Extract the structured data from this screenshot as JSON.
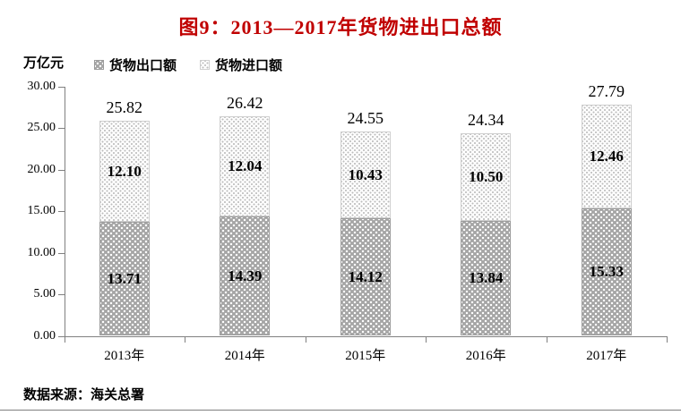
{
  "title": "图9：2013—2017年货物进出口总额",
  "y_axis": {
    "unit_label": "万亿元",
    "tick_labels": [
      "30.00",
      "25.00",
      "20.00",
      "15.00",
      "10.00",
      "5.00",
      "0.00"
    ]
  },
  "legend": {
    "items": [
      {
        "label": "货物出口额",
        "swatch": "export-pattern"
      },
      {
        "label": "货物进口额",
        "swatch": "import-pattern"
      }
    ]
  },
  "chart_data": {
    "type": "bar",
    "stacked": true,
    "title": "图9：2013—2017年货物进出口总额",
    "ylabel": "万亿元",
    "ylim": [
      0,
      30
    ],
    "y_tick_step": 5,
    "grid": false,
    "legend_position": "top",
    "categories": [
      "2013年",
      "2014年",
      "2015年",
      "2016年",
      "2017年"
    ],
    "series": [
      {
        "name": "货物出口额",
        "values": [
          13.71,
          14.39,
          14.12,
          13.84,
          15.33
        ]
      },
      {
        "name": "货物进口额",
        "values": [
          12.1,
          12.04,
          10.43,
          10.5,
          12.46
        ]
      }
    ],
    "totals": [
      25.82,
      26.42,
      24.55,
      24.34,
      27.79
    ]
  },
  "source_note": "数据来源：海关总署",
  "colors": {
    "title_text": "#c00000",
    "axis_line": "#808080",
    "export_fill": "#a6a6a6",
    "export_dot": "#ffffff",
    "import_fill": "#ffffff",
    "import_dot": "#bdbdbd",
    "value_text": "#000000"
  }
}
